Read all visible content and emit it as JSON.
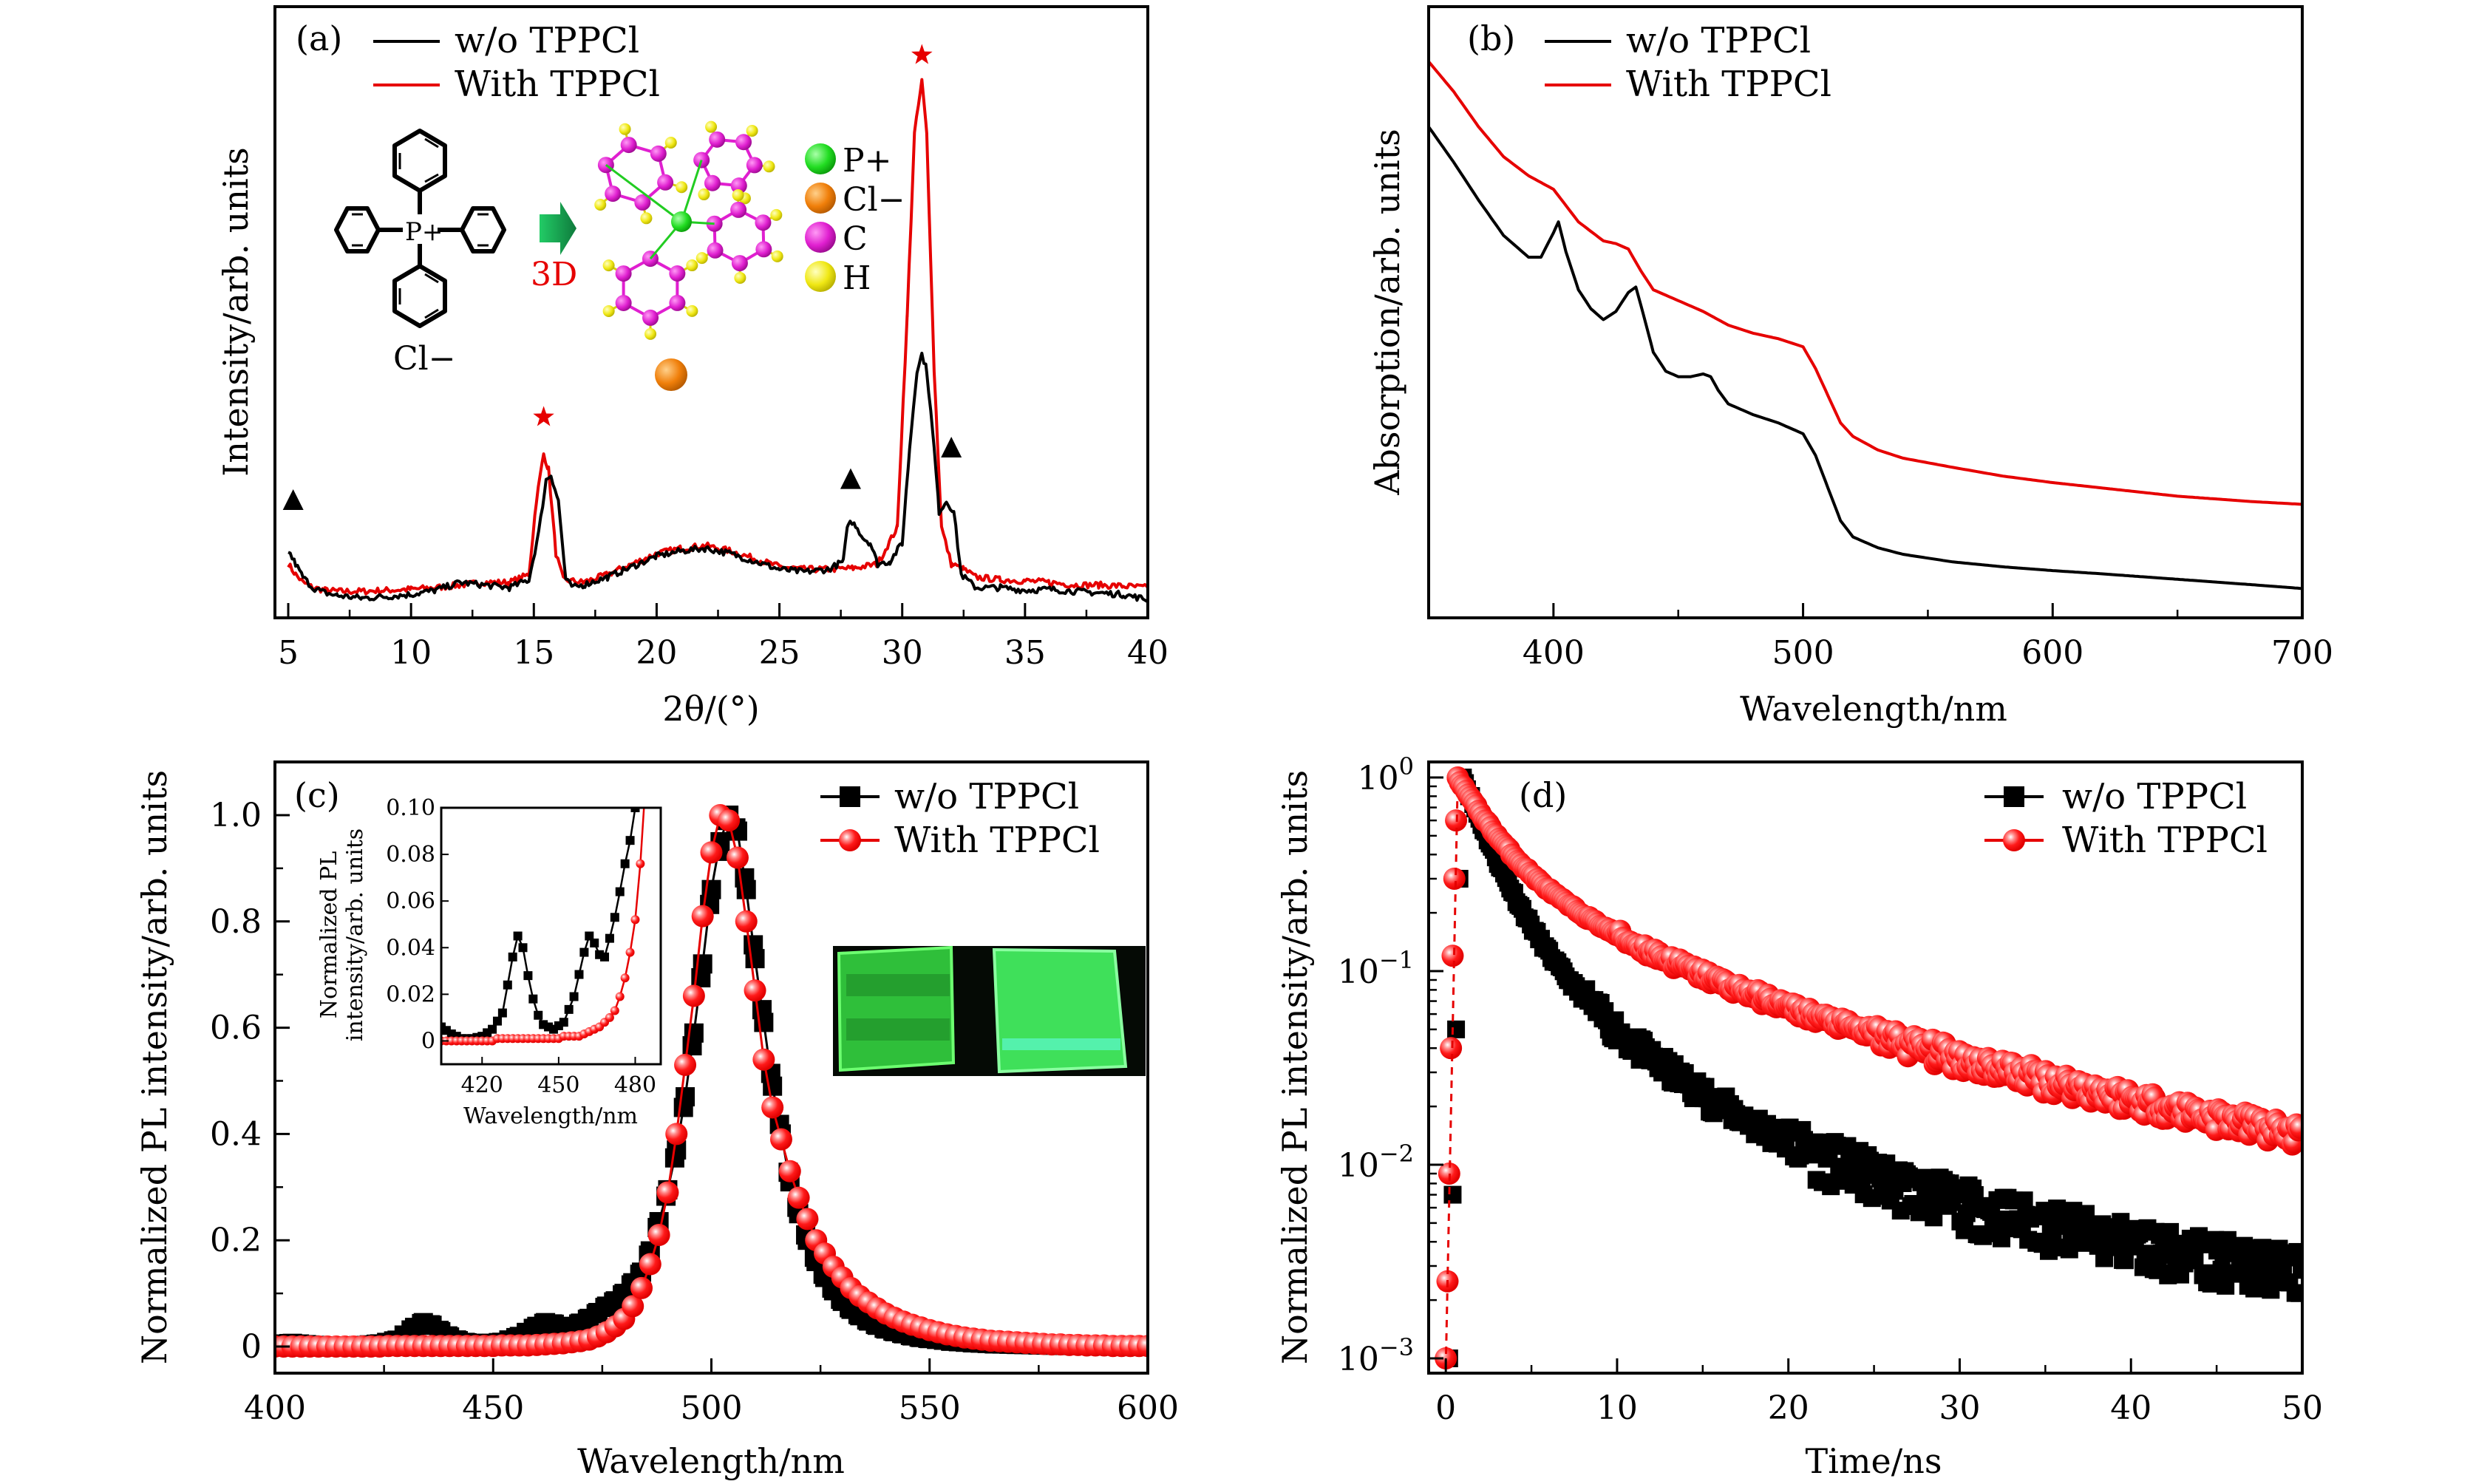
{
  "colors": {
    "black_series": "#000000",
    "red_series": "#e60000",
    "marker_red": "#ff1a1a",
    "arrow": "#1fae5a",
    "P": "#22dd22",
    "Cl": "#f07f0a",
    "C": "#e01fd0",
    "H": "#f0e814",
    "photo_bg": "#050a05",
    "photo_green": "#3fd84a"
  },
  "chart_data": [
    {
      "id": "a",
      "type": "line",
      "panel_label": "(a)",
      "title": "",
      "xlabel": "2θ/(°)",
      "ylabel": "Intensity/arb. units",
      "xlim": [
        5,
        40
      ],
      "ylim": [
        0,
        1.0
      ],
      "xticks": [
        5,
        10,
        15,
        20,
        25,
        30,
        35,
        40
      ],
      "yticks": [],
      "legend": {
        "placement": "top-left",
        "entries": [
          "w/o TPPCl",
          "With TPPCl"
        ]
      },
      "series": [
        {
          "name": "w/o TPPCl",
          "color": "#000000",
          "x": [
            5.0,
            5.3,
            5.6,
            6.0,
            6.5,
            7,
            8,
            9,
            10,
            11,
            12,
            13,
            14,
            14.8,
            15.2,
            15.5,
            15.7,
            16.0,
            16.3,
            16.6,
            17,
            18,
            19,
            20,
            21,
            22,
            23,
            24,
            25,
            26,
            27,
            27.6,
            27.8,
            28.1,
            28.4,
            28.7,
            29,
            29.5,
            30,
            30.3,
            30.6,
            30.8,
            31.0,
            31.3,
            31.5,
            31.8,
            32.1,
            32.4,
            33,
            34,
            35,
            36,
            37,
            38,
            39,
            40
          ],
          "y": [
            0.105,
            0.08,
            0.055,
            0.035,
            0.025,
            0.02,
            0.015,
            0.018,
            0.022,
            0.03,
            0.045,
            0.04,
            0.035,
            0.05,
            0.14,
            0.24,
            0.25,
            0.2,
            0.05,
            0.035,
            0.04,
            0.055,
            0.075,
            0.095,
            0.105,
            0.11,
            0.1,
            0.085,
            0.07,
            0.065,
            0.07,
            0.085,
            0.16,
            0.155,
            0.13,
            0.12,
            0.08,
            0.085,
            0.12,
            0.3,
            0.45,
            0.48,
            0.45,
            0.3,
            0.18,
            0.2,
            0.18,
            0.06,
            0.035,
            0.035,
            0.03,
            0.032,
            0.028,
            0.025,
            0.022,
            0.012
          ],
          "annotations": [
            {
              "x": 5.2,
              "marker": "triangle"
            },
            {
              "x": 27.9,
              "marker": "triangle"
            },
            {
              "x": 32.0,
              "marker": "triangle"
            }
          ]
        },
        {
          "name": "With TPPCl",
          "color": "#e60000",
          "x": [
            5.0,
            5.3,
            5.6,
            6.0,
            6.5,
            7,
            8,
            9,
            10,
            11,
            12,
            13,
            14,
            14.8,
            15.1,
            15.4,
            15.6,
            15.9,
            16.2,
            17,
            18,
            19,
            20,
            21,
            22,
            23,
            24,
            25,
            26,
            27,
            28,
            29,
            29.8,
            30.2,
            30.5,
            30.8,
            31.0,
            31.3,
            31.6,
            32,
            32.5,
            33,
            34,
            35,
            36,
            37,
            38,
            39,
            40
          ],
          "y": [
            0.08,
            0.06,
            0.045,
            0.035,
            0.03,
            0.028,
            0.028,
            0.03,
            0.032,
            0.035,
            0.04,
            0.045,
            0.045,
            0.06,
            0.2,
            0.29,
            0.26,
            0.1,
            0.05,
            0.045,
            0.06,
            0.08,
            0.1,
            0.11,
            0.115,
            0.105,
            0.09,
            0.075,
            0.07,
            0.07,
            0.072,
            0.08,
            0.15,
            0.55,
            0.9,
            1.0,
            0.9,
            0.45,
            0.15,
            0.08,
            0.07,
            0.055,
            0.05,
            0.048,
            0.045,
            0.04,
            0.04,
            0.038,
            0.035
          ],
          "annotations": [
            {
              "x": 15.4,
              "marker": "star"
            },
            {
              "x": 30.8,
              "marker": "star"
            }
          ]
        }
      ],
      "inset": {
        "structure_labels": {
          "center": "P+",
          "counterion": "Cl−",
          "arrow_label": "3D"
        },
        "atom_legend": [
          {
            "label": "P+",
            "color": "#22dd22"
          },
          {
            "label": "Cl−",
            "color": "#f07f0a"
          },
          {
            "label": "C",
            "color": "#e01fd0"
          },
          {
            "label": "H",
            "color": "#f0e814"
          }
        ]
      }
    },
    {
      "id": "b",
      "type": "line",
      "panel_label": "(b)",
      "xlabel": "Wavelength/nm",
      "ylabel": "Absorption/arb. units",
      "xlim": [
        350,
        700
      ],
      "ylim": [
        0,
        1.0
      ],
      "xticks": [
        400,
        500,
        600,
        700
      ],
      "yticks": [],
      "legend": {
        "placement": "top-left",
        "entries": [
          "w/o TPPCl",
          "With TPPCl"
        ]
      },
      "series": [
        {
          "name": "w/o TPPCl",
          "color": "#000000",
          "x": [
            350,
            360,
            370,
            380,
            390,
            395,
            400,
            402,
            405,
            410,
            415,
            420,
            425,
            430,
            433,
            436,
            440,
            445,
            450,
            455,
            460,
            463,
            466,
            470,
            475,
            480,
            490,
            500,
            505,
            510,
            515,
            520,
            530,
            540,
            560,
            580,
            600,
            620,
            650,
            680,
            700
          ],
          "y": [
            0.855,
            0.79,
            0.72,
            0.655,
            0.615,
            0.615,
            0.66,
            0.68,
            0.625,
            0.555,
            0.52,
            0.5,
            0.515,
            0.55,
            0.56,
            0.51,
            0.44,
            0.405,
            0.395,
            0.395,
            0.4,
            0.395,
            0.37,
            0.345,
            0.335,
            0.325,
            0.31,
            0.29,
            0.25,
            0.19,
            0.13,
            0.1,
            0.08,
            0.068,
            0.054,
            0.045,
            0.038,
            0.032,
            0.022,
            0.012,
            0.005
          ]
        },
        {
          "name": "With TPPCl",
          "color": "#e60000",
          "x": [
            350,
            360,
            370,
            380,
            390,
            400,
            405,
            410,
            420,
            425,
            430,
            435,
            440,
            450,
            460,
            470,
            480,
            490,
            500,
            505,
            510,
            515,
            520,
            530,
            540,
            560,
            580,
            600,
            620,
            650,
            680,
            700
          ],
          "y": [
            0.975,
            0.92,
            0.855,
            0.8,
            0.765,
            0.74,
            0.71,
            0.68,
            0.645,
            0.64,
            0.63,
            0.59,
            0.555,
            0.535,
            0.515,
            0.49,
            0.475,
            0.465,
            0.45,
            0.41,
            0.36,
            0.31,
            0.285,
            0.26,
            0.245,
            0.228,
            0.212,
            0.2,
            0.19,
            0.175,
            0.165,
            0.16
          ]
        }
      ]
    },
    {
      "id": "c",
      "type": "line",
      "panel_label": "(c)",
      "xlabel": "Wavelength/nm",
      "ylabel": "Normalized PL intensity/arb. units",
      "xlim": [
        400,
        600
      ],
      "ylim": [
        -0.05,
        1.1
      ],
      "xticks": [
        400,
        450,
        500,
        550,
        600
      ],
      "yticks": [
        0,
        0.2,
        0.4,
        0.6,
        0.8,
        1.0
      ],
      "ytick_labels": [
        "0",
        "0.2",
        "0.4",
        "0.6",
        "0.8",
        "1.0"
      ],
      "legend": {
        "placement": "top-right",
        "entries": [
          "w/o TPPCl",
          "With TPPCl"
        ]
      },
      "series": [
        {
          "name": "w/o TPPCl",
          "color": "#000000",
          "marker": "square",
          "x": [
            400,
            404,
            408,
            412,
            416,
            420,
            424,
            428,
            432,
            434,
            436,
            438,
            440,
            442,
            444,
            448,
            452,
            456,
            460,
            462,
            464,
            466,
            468,
            470,
            472,
            474,
            476,
            478,
            480,
            482,
            484,
            486,
            488,
            490,
            492,
            494,
            496,
            498,
            500,
            502,
            504,
            506,
            508,
            510,
            512,
            514,
            516,
            518,
            520,
            522,
            524,
            526,
            528,
            530,
            532,
            534,
            536,
            538,
            540,
            542,
            544,
            546,
            548,
            550,
            555,
            560,
            565,
            570,
            575,
            580,
            585,
            590,
            595,
            600
          ],
          "y": [
            0.004,
            0.006,
            0.003,
            0.001,
            0.001,
            0.002,
            0.005,
            0.012,
            0.036,
            0.045,
            0.04,
            0.028,
            0.018,
            0.011,
            0.007,
            0.005,
            0.008,
            0.019,
            0.038,
            0.045,
            0.042,
            0.037,
            0.036,
            0.044,
            0.053,
            0.064,
            0.076,
            0.086,
            0.1,
            0.12,
            0.14,
            0.18,
            0.235,
            0.295,
            0.37,
            0.47,
            0.59,
            0.72,
            0.86,
            0.95,
            1.0,
            0.97,
            0.86,
            0.73,
            0.61,
            0.49,
            0.4,
            0.31,
            0.25,
            0.2,
            0.16,
            0.13,
            0.105,
            0.085,
            0.07,
            0.058,
            0.048,
            0.04,
            0.033,
            0.028,
            0.024,
            0.02,
            0.017,
            0.015,
            0.01,
            0.007,
            0.005,
            0.004,
            0.003,
            0.002,
            0.002,
            0.001,
            0.001,
            0.001
          ]
        },
        {
          "name": "With TPPCl",
          "color": "#e60000",
          "marker": "circle",
          "x": [
            400,
            402,
            404,
            406,
            408,
            410,
            412,
            414,
            416,
            418,
            420,
            422,
            424,
            426,
            428,
            430,
            432,
            434,
            436,
            438,
            440,
            442,
            444,
            446,
            448,
            450,
            452,
            454,
            456,
            458,
            460,
            462,
            464,
            466,
            468,
            470,
            472,
            474,
            476,
            478,
            480,
            482,
            484,
            486,
            488,
            490,
            492,
            494,
            496,
            498,
            500,
            502,
            504,
            506,
            508,
            510,
            512,
            514,
            516,
            518,
            520,
            522,
            524,
            526,
            528,
            530,
            532,
            534,
            536,
            538,
            540,
            542,
            544,
            546,
            548,
            550,
            552,
            554,
            556,
            558,
            560,
            562,
            564,
            566,
            568,
            570,
            572,
            574,
            576,
            578,
            580,
            582,
            584,
            586,
            588,
            590,
            592,
            594,
            596,
            598,
            600
          ],
          "y": [
            0,
            0,
            0,
            0,
            0,
            0,
            0,
            0,
            0,
            0,
            0,
            0,
            0,
            0.001,
            0.001,
            0.001,
            0.001,
            0.001,
            0.001,
            0.001,
            0.001,
            0.001,
            0.001,
            0.001,
            0.001,
            0.001,
            0.002,
            0.002,
            0.002,
            0.002,
            0.003,
            0.004,
            0.005,
            0.006,
            0.008,
            0.01,
            0.013,
            0.019,
            0.027,
            0.038,
            0.052,
            0.076,
            0.11,
            0.155,
            0.21,
            0.29,
            0.4,
            0.53,
            0.66,
            0.81,
            0.93,
            1.0,
            0.99,
            0.92,
            0.8,
            0.67,
            0.54,
            0.45,
            0.39,
            0.33,
            0.28,
            0.24,
            0.2,
            0.175,
            0.15,
            0.13,
            0.11,
            0.095,
            0.083,
            0.072,
            0.062,
            0.054,
            0.047,
            0.041,
            0.036,
            0.031,
            0.027,
            0.023,
            0.02,
            0.017,
            0.015,
            0.013,
            0.011,
            0.01,
            0.009,
            0.008,
            0.007,
            0.006,
            0.005,
            0.004,
            0.004,
            0.003,
            0.003,
            0.002,
            0.002,
            0.002,
            0.001,
            0.001,
            0.001,
            0.001,
            0.001
          ]
        }
      ],
      "inset": {
        "xlabel": "Wavelength/nm",
        "ylabel_line1": "Normalized PL",
        "ylabel_line2": "intensity/arb. units",
        "xlim": [
          404,
          490
        ],
        "ylim": [
          -0.01,
          0.1
        ],
        "xticks": [
          420,
          450,
          480
        ],
        "yticks": [
          0,
          0.02,
          0.04,
          0.06,
          0.08,
          0.1
        ],
        "ytick_labels": [
          "0",
          "0.02",
          "0.04",
          "0.06",
          "0.08",
          "0.10"
        ]
      },
      "photo": {
        "description": "two green-emitting films under UV: left w/o TPPCl, right with TPPCl"
      }
    },
    {
      "id": "d",
      "type": "scatter",
      "panel_label": "(d)",
      "xlabel": "Time/ns",
      "ylabel": "Normalized PL intensity/arb. units",
      "xlim": [
        -1,
        50
      ],
      "ylim": [
        0.0009,
        1.2
      ],
      "yscale": "log",
      "xticks": [
        0,
        10,
        20,
        30,
        40,
        50
      ],
      "yticks": [
        1,
        0.1,
        0.01,
        0.001
      ],
      "ytick_labels": [
        "10^0",
        "10^-1",
        "10^-2",
        "10^-3"
      ],
      "legend": {
        "placement": "top-right",
        "entries": [
          "w/o TPPCl",
          "With TPPCl"
        ]
      },
      "series": [
        {
          "name": "w/o TPPCl",
          "color": "#000000",
          "marker": "square",
          "rise": {
            "t": [
              0.2,
              0.4,
              0.6,
              0.8,
              1.0
            ],
            "y": [
              0.001,
              0.007,
              0.05,
              0.3,
              1.0
            ]
          },
          "decay_model": {
            "amplitudes": [
              0.78,
              0.2,
              0.02
            ],
            "tau_ns": [
              1.6,
              5.0,
              20.0
            ],
            "t0": 1.0
          },
          "noise_floor": 0.0015,
          "t_end": 50
        },
        {
          "name": "With TPPCl",
          "color": "#e60000",
          "marker": "circle",
          "rise": {
            "t": [
              0.0,
              0.1,
              0.2,
              0.3,
              0.4,
              0.5,
              0.6,
              0.7
            ],
            "y": [
              0.001,
              0.0025,
              0.009,
              0.04,
              0.12,
              0.3,
              0.6,
              1.0
            ]
          },
          "decay_model": {
            "amplitudes": [
              0.6,
              0.3,
              0.1
            ],
            "tau_ns": [
              2.0,
              7.0,
              25.0
            ],
            "t0": 0.7
          },
          "t_end": 50
        }
      ]
    }
  ]
}
